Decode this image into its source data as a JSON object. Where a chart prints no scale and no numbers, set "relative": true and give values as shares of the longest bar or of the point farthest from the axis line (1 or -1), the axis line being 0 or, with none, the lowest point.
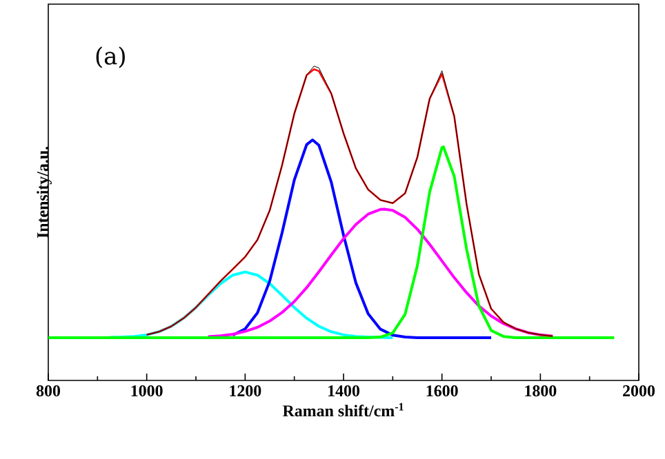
{
  "chart_data": {
    "type": "line",
    "relative": true,
    "xlabel": "Raman shift/cm$^{-1}$",
    "ylabel": "Intensity/a.u.",
    "annotations": [
      "(a)"
    ],
    "xlim": [
      800,
      2000
    ],
    "xticks": [
      800,
      1000,
      1200,
      1400,
      1600,
      1800,
      2000
    ],
    "grid": false,
    "series": [
      {
        "color": "#ff0000",
        "x": [
          1000,
          1025,
          1050,
          1075,
          1100,
          1125,
          1150,
          1175,
          1200,
          1225,
          1250,
          1275,
          1300,
          1325,
          1340,
          1350,
          1375,
          1400,
          1425,
          1450,
          1475,
          1500,
          1525,
          1550,
          1575,
          1600,
          1625,
          1650,
          1675,
          1700,
          1725,
          1750,
          1775,
          1800,
          1825
        ],
        "values": [
          0.145,
          0.155,
          0.172,
          0.198,
          0.232,
          0.274,
          0.316,
          0.354,
          0.393,
          0.447,
          0.541,
          0.684,
          0.849,
          0.971,
          0.99,
          0.984,
          0.913,
          0.786,
          0.675,
          0.607,
          0.574,
          0.564,
          0.595,
          0.71,
          0.896,
          0.975,
          0.84,
          0.561,
          0.338,
          0.228,
          0.185,
          0.164,
          0.152,
          0.145,
          0.141
        ]
      },
      {
        "color": "#000000",
        "x": [
          1000,
          1025,
          1050,
          1075,
          1100,
          1125,
          1150,
          1175,
          1200,
          1225,
          1250,
          1275,
          1300,
          1325,
          1340,
          1350,
          1375,
          1400,
          1425,
          1450,
          1475,
          1500,
          1525,
          1550,
          1575,
          1600,
          1625,
          1650,
          1675,
          1700,
          1725,
          1750,
          1775,
          1800,
          1825
        ],
        "values": [
          0.145,
          0.155,
          0.172,
          0.198,
          0.232,
          0.274,
          0.316,
          0.354,
          0.393,
          0.447,
          0.541,
          0.684,
          0.849,
          0.971,
          1.0,
          0.994,
          0.913,
          0.786,
          0.675,
          0.607,
          0.574,
          0.564,
          0.595,
          0.71,
          0.896,
          0.985,
          0.84,
          0.561,
          0.338,
          0.228,
          0.185,
          0.164,
          0.152,
          0.145,
          0.141
        ]
      },
      {
        "color": "#00ffff",
        "x": [
          925,
          950,
          975,
          1000,
          1025,
          1050,
          1075,
          1100,
          1125,
          1150,
          1175,
          1200,
          1225,
          1250,
          1275,
          1300,
          1325,
          1350,
          1375,
          1400,
          1425,
          1450,
          1475,
          1500
        ],
        "values": [
          0.137,
          0.138,
          0.14,
          0.145,
          0.155,
          0.172,
          0.198,
          0.232,
          0.271,
          0.308,
          0.335,
          0.345,
          0.335,
          0.308,
          0.271,
          0.232,
          0.198,
          0.172,
          0.155,
          0.145,
          0.14,
          0.138,
          0.137,
          0.136
        ]
      },
      {
        "color": "#0000ff",
        "x": [
          1175,
          1200,
          1225,
          1250,
          1275,
          1300,
          1325,
          1337,
          1350,
          1375,
          1400,
          1425,
          1450,
          1475,
          1500,
          1525,
          1550,
          1600,
          1650,
          1700
        ],
        "values": [
          0.144,
          0.164,
          0.215,
          0.316,
          0.469,
          0.638,
          0.75,
          0.765,
          0.748,
          0.631,
          0.462,
          0.311,
          0.212,
          0.163,
          0.144,
          0.138,
          0.136,
          0.136,
          0.136,
          0.136
        ]
      },
      {
        "color": "#ff00ff",
        "x": [
          1125,
          1150,
          1175,
          1200,
          1225,
          1250,
          1275,
          1300,
          1325,
          1350,
          1375,
          1400,
          1425,
          1450,
          1475,
          1483,
          1500,
          1525,
          1550,
          1575,
          1600,
          1625,
          1650,
          1675,
          1700,
          1725,
          1750,
          1775,
          1800,
          1825
        ],
        "values": [
          0.139,
          0.142,
          0.147,
          0.156,
          0.169,
          0.189,
          0.216,
          0.251,
          0.295,
          0.346,
          0.399,
          0.451,
          0.496,
          0.529,
          0.544,
          0.545,
          0.541,
          0.519,
          0.481,
          0.433,
          0.38,
          0.327,
          0.279,
          0.237,
          0.205,
          0.181,
          0.164,
          0.152,
          0.145,
          0.141
        ]
      },
      {
        "color": "#00ff00",
        "x": [
          800,
          1450,
          1475,
          1500,
          1525,
          1550,
          1575,
          1600,
          1603,
          1625,
          1650,
          1675,
          1700,
          1725,
          1750,
          1950
        ],
        "values": [
          0.136,
          0.136,
          0.138,
          0.151,
          0.21,
          0.365,
          0.599,
          0.741,
          0.743,
          0.649,
          0.418,
          0.237,
          0.159,
          0.14,
          0.136,
          0.136
        ]
      }
    ]
  }
}
